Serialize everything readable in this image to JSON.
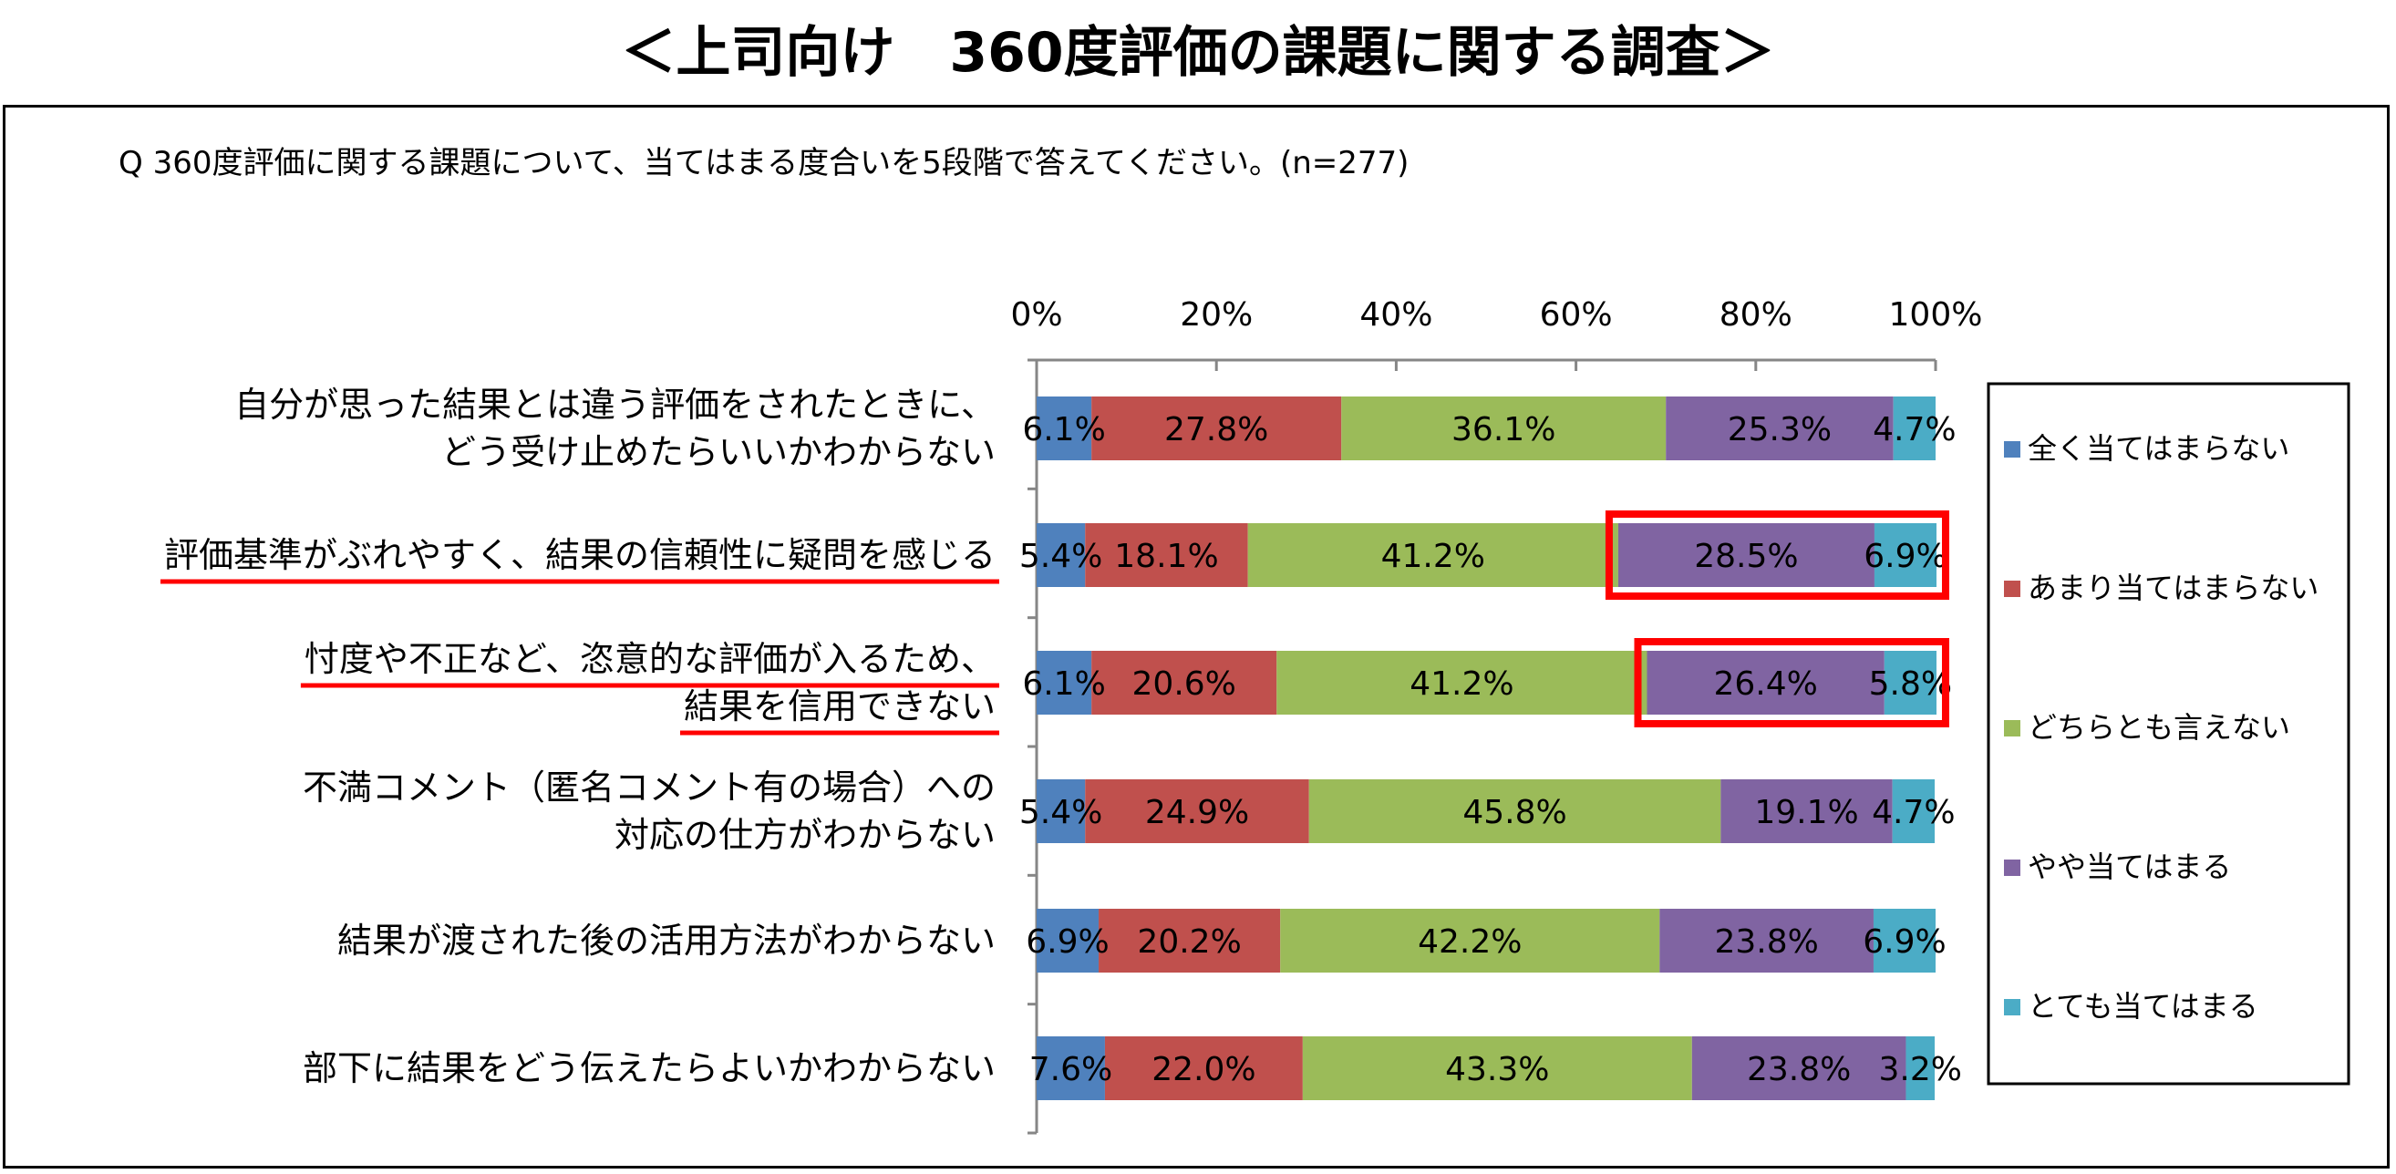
{
  "title": "＜上司向け　360度評価の課題に関する調査＞",
  "question": "Q 360度評価に関する課題について、当てはまる度合いを5段階で答えてください。(n=277)",
  "colors": {
    "全く当てはまらない": "#4f81bd",
    "あまり当てはまらない": "#c0504d",
    "どちらとも言えない": "#9bbb59",
    "やや当てはまる": "#8064a2",
    "とても当てはまる": "#4bacc6",
    "highlight": "#ff0000"
  },
  "chart_data": {
    "type": "bar",
    "orientation": "horizontal",
    "stacked": true,
    "stack_mode": "percent",
    "xlim": [
      0,
      100
    ],
    "xticks": [
      "0%",
      "20%",
      "40%",
      "60%",
      "80%",
      "100%"
    ],
    "legend_position": "right",
    "grid": false,
    "categories": [
      [
        "自分が思った結果とは違う評価をされたときに、",
        "どう受け止めたらいいかわからない"
      ],
      [
        "評価基準がぶれやすく、結果の信頼性に疑問を感じる"
      ],
      [
        "忖度や不正など、恣意的な評価が入るため、",
        "結果を信用できない"
      ],
      [
        "不満コメント（匿名コメント有の場合）への",
        "対応の仕方がわからない"
      ],
      [
        "結果が渡された後の活用方法がわからない"
      ],
      [
        "部下に結果をどう伝えたらよいかわからない"
      ]
    ],
    "underlined_categories": [
      1,
      2
    ],
    "highlighted_segments": [
      [
        1,
        3
      ],
      [
        1,
        4
      ],
      [
        2,
        3
      ],
      [
        2,
        4
      ]
    ],
    "series": [
      {
        "name": "全く当てはまらない",
        "values": [
          6.1,
          5.4,
          6.1,
          5.4,
          6.9,
          7.6
        ],
        "labels": [
          "6.1%",
          "5.4%",
          "6.1%",
          "5.4%",
          "6.9%",
          "7.6%"
        ]
      },
      {
        "name": "あまり当てはまらない",
        "values": [
          27.8,
          18.1,
          20.6,
          24.9,
          20.2,
          22.0
        ],
        "labels": [
          "27.8%",
          "18.1%",
          "20.6%",
          "24.9%",
          "20.2%",
          "22.0%"
        ]
      },
      {
        "name": "どちらとも言えない",
        "values": [
          36.1,
          41.2,
          41.2,
          45.8,
          42.2,
          43.3
        ],
        "labels": [
          "36.1%",
          "41.2%",
          "41.2%",
          "45.8%",
          "42.2%",
          "43.3%"
        ]
      },
      {
        "name": "やや当てはまる",
        "values": [
          25.3,
          28.5,
          26.4,
          19.1,
          23.8,
          23.8
        ],
        "labels": [
          "25.3%",
          "28.5%",
          "26.4%",
          "19.1%",
          "23.8%",
          "23.8%"
        ]
      },
      {
        "name": "とても当てはまる",
        "values": [
          4.7,
          6.9,
          5.8,
          4.7,
          6.9,
          3.2
        ],
        "labels": [
          "4.7%",
          "6.9%",
          "5.8%",
          "4.7%",
          "6.9%",
          "3.2%"
        ]
      }
    ]
  }
}
